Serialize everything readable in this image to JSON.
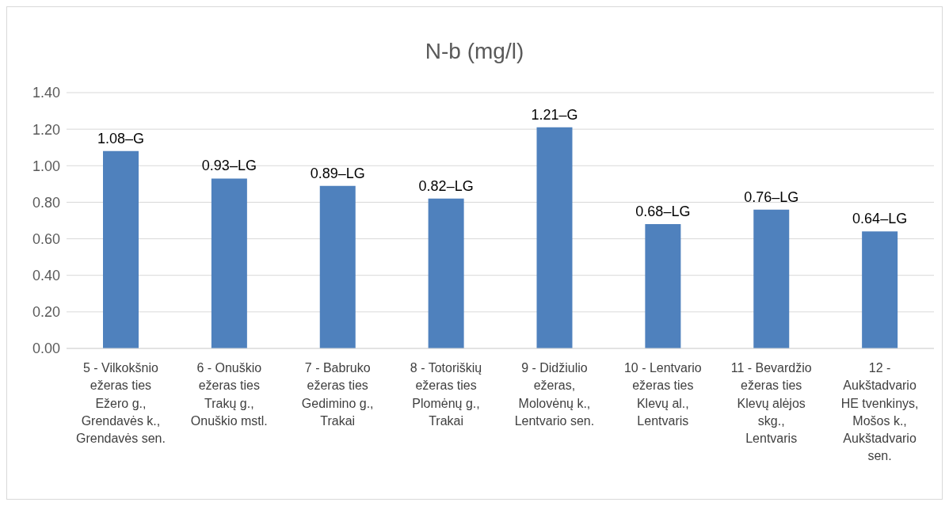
{
  "chart_data": {
    "type": "bar",
    "title": "N-b (mg/l)",
    "categories": [
      "5 - Vilkokšnio ežeras ties Ežero g., Grendavės k., Grendavės sen.",
      "6 - Onuškio ežeras ties Trakų g., Onuškio mstl.",
      "7 - Babruko ežeras ties Gedimino g., Trakai",
      "8 - Totoriškių ežeras ties Plomėnų g., Trakai",
      "9 - Didžiulio ežeras, Molovėnų k., Lentvario sen.",
      "10 - Lentvario ežeras ties Klevų al., Lentvaris",
      "11 - Bevardžio ežeras ties Klevų alėjos skg., Lentvaris",
      "12 - Aukštadvario HE tvenkinys, Mošos k., Aukštadvario sen."
    ],
    "values": [
      1.08,
      0.93,
      0.89,
      0.82,
      1.21,
      0.68,
      0.76,
      0.64
    ],
    "value_labels": [
      "1.08–G",
      "0.93–LG",
      "0.89–LG",
      "0.82–LG",
      "1.21–G",
      "0.68–LG",
      "0.76–LG",
      "0.64–LG"
    ],
    "color": "#4f81bd",
    "ylim": [
      0,
      1.4
    ],
    "yticks": [
      {
        "value": 0,
        "label": "0.00"
      },
      {
        "value": 0.2,
        "label": "0.20"
      },
      {
        "value": 0.4,
        "label": "0.40"
      },
      {
        "value": 0.6,
        "label": "0.60"
      },
      {
        "value": 0.8,
        "label": "0.80"
      },
      {
        "value": 1.0,
        "label": "1.00"
      },
      {
        "value": 1.2,
        "label": "1.20"
      },
      {
        "value": 1.4,
        "label": "1.40"
      }
    ],
    "grid": "y"
  }
}
